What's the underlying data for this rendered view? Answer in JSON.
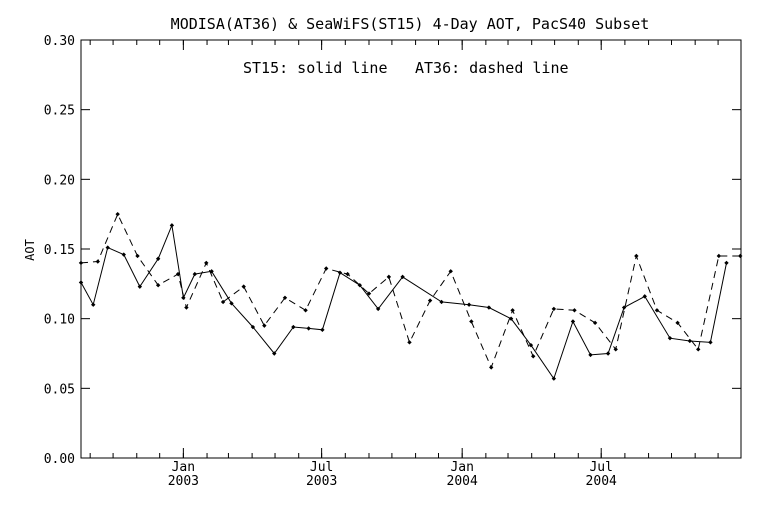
{
  "chart_data": {
    "type": "line",
    "title": "MODISA(AT36) & SeaWiFS(ST15) 4-Day AOT, PacS40 Subset",
    "annotation": {
      "solid": "ST15: solid line",
      "dashed": "AT36: dashed line"
    },
    "ylabel": "AOT",
    "xlabel": "",
    "ylim": [
      0.0,
      0.3
    ],
    "xlim": [
      "2002-08-20",
      "2004-12-31"
    ],
    "y_ticks": [
      "0.00",
      "0.05",
      "0.10",
      "0.15",
      "0.20",
      "0.25",
      "0.30"
    ],
    "x_ticks": [
      {
        "date": "2003-01-01",
        "month": "Jan",
        "year": "2003"
      },
      {
        "date": "2003-07-01",
        "month": "Jul",
        "year": "2003"
      },
      {
        "date": "2004-01-01",
        "month": "Jan",
        "year": "2004"
      },
      {
        "date": "2004-07-01",
        "month": "Jul",
        "year": "2004"
      }
    ],
    "grid": false,
    "legend": "none",
    "line_color": "#000000",
    "series": [
      {
        "name": "ST15",
        "style": "solid",
        "x": [
          "2002-08-20",
          "2002-09-05",
          "2002-09-24",
          "2002-10-15",
          "2002-11-05",
          "2002-11-29",
          "2002-12-17",
          "2003-01-01",
          "2003-01-16",
          "2003-02-07",
          "2003-03-05",
          "2003-04-02",
          "2003-04-30",
          "2003-05-25",
          "2003-06-14",
          "2003-07-02",
          "2003-07-25",
          "2003-08-20",
          "2003-09-13",
          "2003-10-15",
          "2003-12-05",
          "2004-01-10",
          "2004-02-05",
          "2004-03-05",
          "2004-03-31",
          "2004-04-30",
          "2004-05-25",
          "2004-06-17",
          "2004-07-10",
          "2004-07-31",
          "2004-08-27",
          "2004-09-29",
          "2004-10-25",
          "2004-11-21",
          "2004-12-12"
        ],
        "values": [
          0.126,
          0.11,
          0.151,
          0.146,
          0.123,
          0.143,
          0.167,
          0.115,
          0.132,
          0.134,
          0.111,
          0.094,
          0.075,
          0.094,
          0.093,
          0.092,
          0.133,
          0.124,
          0.107,
          0.13,
          0.112,
          0.11,
          0.108,
          0.1,
          0.081,
          0.057,
          0.098,
          0.074,
          0.075,
          0.108,
          0.116,
          0.086,
          0.084,
          0.083,
          0.14
        ]
      },
      {
        "name": "AT36",
        "style": "dashed",
        "x": [
          "2002-08-20",
          "2002-09-11",
          "2002-10-07",
          "2002-11-02",
          "2002-11-29",
          "2002-12-25",
          "2003-01-05",
          "2003-01-31",
          "2003-02-22",
          "2003-03-21",
          "2003-04-17",
          "2003-05-14",
          "2003-06-10",
          "2003-07-07",
          "2003-08-04",
          "2003-09-01",
          "2003-09-27",
          "2003-10-24",
          "2003-11-20",
          "2003-12-17",
          "2004-01-13",
          "2004-02-08",
          "2004-03-07",
          "2004-04-03",
          "2004-04-30",
          "2004-05-27",
          "2004-06-23",
          "2004-07-20",
          "2004-08-16",
          "2004-09-12",
          "2004-10-09",
          "2004-11-05",
          "2004-12-02",
          "2004-12-30"
        ],
        "values": [
          0.14,
          0.141,
          0.175,
          0.145,
          0.124,
          0.132,
          0.108,
          0.14,
          0.112,
          0.123,
          0.095,
          0.115,
          0.106,
          0.136,
          0.132,
          0.118,
          0.13,
          0.083,
          0.113,
          0.134,
          0.098,
          0.065,
          0.106,
          0.073,
          0.107,
          0.106,
          0.097,
          0.078,
          0.145,
          0.106,
          0.097,
          0.078,
          0.145,
          0.145
        ]
      }
    ]
  }
}
